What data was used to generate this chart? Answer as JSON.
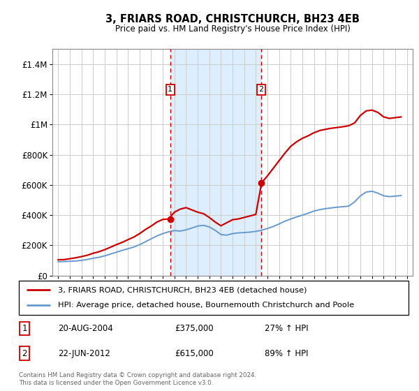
{
  "title": "3, FRIARS ROAD, CHRISTCHURCH, BH23 4EB",
  "subtitle": "Price paid vs. HM Land Registry's House Price Index (HPI)",
  "footer": "Contains HM Land Registry data © Crown copyright and database right 2024.\nThis data is licensed under the Open Government Licence v3.0.",
  "legend_line1": "3, FRIARS ROAD, CHRISTCHURCH, BH23 4EB (detached house)",
  "legend_line2": "HPI: Average price, detached house, Bournemouth Christchurch and Poole",
  "transaction1_date": "20-AUG-2004",
  "transaction1_price": "£375,000",
  "transaction1_hpi": "27% ↑ HPI",
  "transaction2_date": "22-JUN-2012",
  "transaction2_price": "£615,000",
  "transaction2_hpi": "89% ↑ HPI",
  "transaction1_x": 2004.64,
  "transaction1_y": 375000,
  "transaction2_x": 2012.47,
  "transaction2_y": 615000,
  "shade_x1": 2004.64,
  "shade_x2": 2012.47,
  "ylim_max": 1500000,
  "xlim_min": 1994.5,
  "xlim_max": 2025.5,
  "yticks": [
    0,
    200000,
    400000,
    600000,
    800000,
    1000000,
    1200000,
    1400000
  ],
  "ytick_labels": [
    "£0",
    "£200K",
    "£400K",
    "£600K",
    "£800K",
    "£1M",
    "£1.2M",
    "£1.4M"
  ],
  "red_color": "#cc0000",
  "blue_color": "#6699cc",
  "shade_color": "#ddeeff",
  "grid_color": "#cccccc",
  "hpi_years": [
    1995,
    1995.5,
    1996,
    1996.5,
    1997,
    1997.5,
    1998,
    1998.5,
    1999,
    1999.5,
    2000,
    2000.5,
    2001,
    2001.5,
    2002,
    2002.5,
    2003,
    2003.5,
    2004,
    2004.5,
    2005,
    2005.5,
    2006,
    2006.5,
    2007,
    2007.5,
    2008,
    2008.5,
    2009,
    2009.5,
    2010,
    2010.5,
    2011,
    2011.5,
    2012,
    2012.5,
    2013,
    2013.5,
    2014,
    2014.5,
    2015,
    2015.5,
    2016,
    2016.5,
    2017,
    2017.5,
    2018,
    2018.5,
    2019,
    2019.5,
    2020,
    2020.5,
    2021,
    2021.5,
    2022,
    2022.5,
    2023,
    2023.5,
    2024,
    2024.5
  ],
  "hpi_values": [
    92000,
    93000,
    95000,
    97000,
    101000,
    107000,
    115000,
    121000,
    131000,
    143000,
    155000,
    167000,
    178000,
    189000,
    205000,
    224000,
    244000,
    263000,
    278000,
    290000,
    298000,
    295000,
    303000,
    315000,
    328000,
    333000,
    322000,
    300000,
    272000,
    268000,
    278000,
    283000,
    285000,
    288000,
    293000,
    300000,
    312000,
    325000,
    342000,
    360000,
    375000,
    388000,
    400000,
    413000,
    427000,
    437000,
    443000,
    448000,
    453000,
    456000,
    460000,
    488000,
    528000,
    553000,
    558000,
    546000,
    528000,
    523000,
    526000,
    530000
  ],
  "red_values": [
    105000,
    106000,
    112000,
    118000,
    126000,
    135000,
    148000,
    158000,
    172000,
    188000,
    205000,
    220000,
    238000,
    255000,
    278000,
    305000,
    328000,
    355000,
    372000,
    375000,
    420000,
    440000,
    450000,
    435000,
    420000,
    410000,
    385000,
    355000,
    330000,
    350000,
    370000,
    375000,
    385000,
    395000,
    405000,
    615000,
    660000,
    710000,
    760000,
    810000,
    855000,
    885000,
    908000,
    925000,
    945000,
    960000,
    968000,
    975000,
    980000,
    985000,
    992000,
    1010000,
    1060000,
    1090000,
    1095000,
    1080000,
    1050000,
    1040000,
    1045000,
    1050000
  ]
}
